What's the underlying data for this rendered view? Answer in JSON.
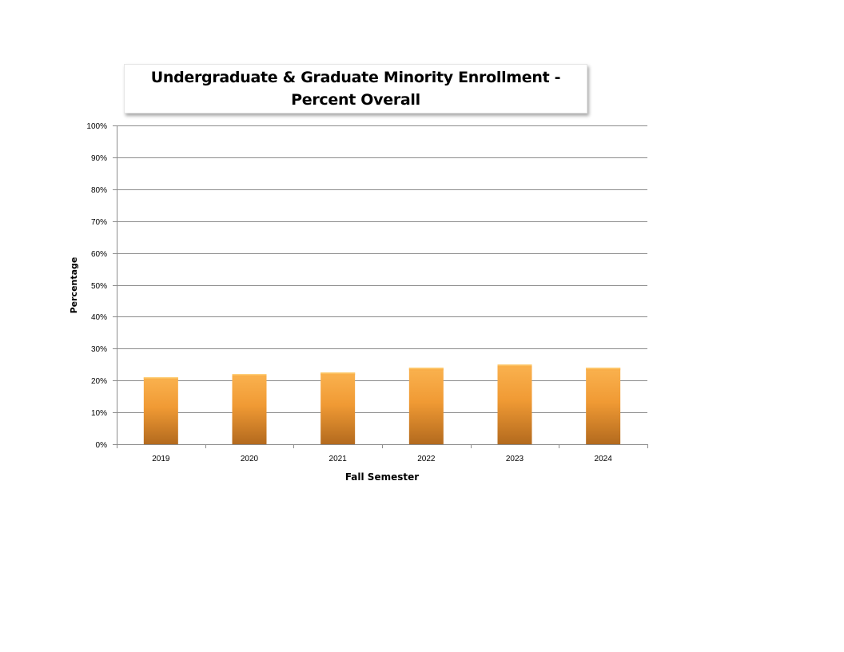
{
  "chart_data": {
    "type": "bar",
    "title": "Undergraduate & Graduate Minority Enrollment - Percent Overall",
    "xlabel": "Fall Semester",
    "ylabel": "Percentage",
    "categories": [
      "2019",
      "2020",
      "2021",
      "2022",
      "2023",
      "2024"
    ],
    "values": [
      21,
      22,
      22.5,
      24,
      25,
      24
    ],
    "ylim": [
      0,
      100
    ],
    "yticks": [
      0,
      10,
      20,
      30,
      40,
      50,
      60,
      70,
      80,
      90,
      100
    ],
    "ytick_labels": [
      "0%",
      "10%",
      "20%",
      "30%",
      "40%",
      "50%",
      "60%",
      "70%",
      "80%",
      "90%",
      "100%"
    ],
    "grid": true,
    "legend": "none",
    "bar_color": "#F39A35"
  }
}
